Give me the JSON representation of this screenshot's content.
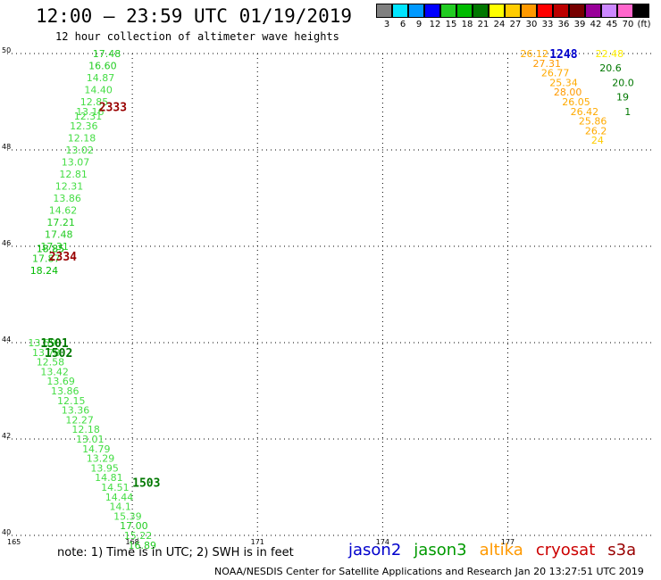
{
  "header": {
    "title": "12:00 – 23:59 UTC 01/19/2019",
    "subtitle": "12 hour collection of altimeter wave heights"
  },
  "color_scale": {
    "labels": [
      "3",
      "6",
      "9",
      "12",
      "15",
      "18",
      "21",
      "24",
      "27",
      "30",
      "33",
      "36",
      "39",
      "42",
      "45",
      "70",
      "(ft)"
    ],
    "colors": [
      "#808080",
      "#00e5ff",
      "#0099ff",
      "#0000ff",
      "#22cc22",
      "#00bb00",
      "#007700",
      "#ffff00",
      "#ffcc00",
      "#ff9900",
      "#ff0000",
      "#bb0000",
      "#770000",
      "#990099",
      "#cc88ff",
      "#ff66cc",
      "#000000"
    ]
  },
  "footer": {
    "note": "note: 1) Time is in UTC; 2) SWH is in feet",
    "credit": "NOAA/NESDIS Center for Satellite Applications and Research   Jan 20 13:27:51 UTC 2019",
    "legend": [
      {
        "label": "jason2",
        "color": "#0000cc"
      },
      {
        "label": "jason3",
        "color": "#009900"
      },
      {
        "label": "altika",
        "color": "#ff9900"
      },
      {
        "label": "cryosat",
        "color": "#cc0000"
      },
      {
        "label": "s3a",
        "color": "#990000"
      }
    ]
  },
  "chart_data": {
    "type": "scatter",
    "xlim": [
      165,
      180.5
    ],
    "ylim": [
      40,
      50
    ],
    "x_ticks": [
      165,
      168,
      171,
      174,
      177
    ],
    "y_ticks": [
      40,
      42,
      44,
      46,
      48,
      50
    ],
    "grid": true,
    "track_labels": [
      {
        "text": "2333",
        "x": 167.2,
        "y": 48.9,
        "color": "#990000"
      },
      {
        "text": "2334",
        "x": 166.0,
        "y": 45.8,
        "color": "#990000"
      },
      {
        "text": "1501",
        "x": 165.8,
        "y": 44.0,
        "color": "#007700"
      },
      {
        "text": "1502",
        "x": 165.9,
        "y": 43.8,
        "color": "#007700"
      },
      {
        "text": "1503",
        "x": 168.0,
        "y": 41.1,
        "color": "#007700"
      },
      {
        "text": "1248",
        "x": 178.0,
        "y": 50.0,
        "color": "#0000cc"
      }
    ],
    "points": [
      {
        "x": 167.05,
        "y": 50.0,
        "v": "17.48",
        "color": "#22cc22"
      },
      {
        "x": 166.95,
        "y": 49.75,
        "v": "16.60",
        "color": "#22cc22"
      },
      {
        "x": 166.9,
        "y": 49.5,
        "v": "14.87",
        "color": "#44dd44"
      },
      {
        "x": 166.85,
        "y": 49.25,
        "v": "14.40",
        "color": "#44dd44"
      },
      {
        "x": 166.75,
        "y": 49.0,
        "v": "12.85",
        "color": "#44dd44"
      },
      {
        "x": 166.65,
        "y": 48.8,
        "v": "13.16",
        "color": "#44dd44"
      },
      {
        "x": 166.6,
        "y": 48.7,
        "v": "12.31",
        "color": "#44dd44"
      },
      {
        "x": 166.5,
        "y": 48.5,
        "v": "12.36",
        "color": "#44dd44"
      },
      {
        "x": 166.45,
        "y": 48.25,
        "v": "12.18",
        "color": "#44dd44"
      },
      {
        "x": 166.4,
        "y": 48.0,
        "v": "13.02",
        "color": "#44dd44"
      },
      {
        "x": 166.3,
        "y": 47.75,
        "v": "13.07",
        "color": "#44dd44"
      },
      {
        "x": 166.25,
        "y": 47.5,
        "v": "12.81",
        "color": "#44dd44"
      },
      {
        "x": 166.15,
        "y": 47.25,
        "v": "12.31",
        "color": "#44dd44"
      },
      {
        "x": 166.1,
        "y": 47.0,
        "v": "13.86",
        "color": "#44dd44"
      },
      {
        "x": 166.0,
        "y": 46.75,
        "v": "14.62",
        "color": "#44dd44"
      },
      {
        "x": 165.95,
        "y": 46.5,
        "v": "17.21",
        "color": "#22cc22"
      },
      {
        "x": 165.9,
        "y": 46.25,
        "v": "17.48",
        "color": "#22cc22"
      },
      {
        "x": 165.8,
        "y": 46.0,
        "v": "17.31",
        "color": "#22cc22"
      },
      {
        "x": 165.7,
        "y": 45.95,
        "v": "18.85",
        "color": "#00bb00"
      },
      {
        "x": 165.6,
        "y": 45.75,
        "v": "17.87",
        "color": "#22cc22"
      },
      {
        "x": 165.55,
        "y": 45.5,
        "v": "18.24",
        "color": "#00bb00"
      },
      {
        "x": 165.5,
        "y": 44.0,
        "v": "13.59",
        "color": "#44dd44"
      },
      {
        "x": 165.6,
        "y": 43.8,
        "v": "13.78",
        "color": "#44dd44"
      },
      {
        "x": 165.7,
        "y": 43.6,
        "v": "12.58",
        "color": "#44dd44"
      },
      {
        "x": 165.8,
        "y": 43.4,
        "v": "13.42",
        "color": "#44dd44"
      },
      {
        "x": 165.95,
        "y": 43.2,
        "v": "13.69",
        "color": "#44dd44"
      },
      {
        "x": 166.05,
        "y": 43.0,
        "v": "13.86",
        "color": "#44dd44"
      },
      {
        "x": 166.2,
        "y": 42.8,
        "v": "12.15",
        "color": "#44dd44"
      },
      {
        "x": 166.3,
        "y": 42.6,
        "v": "13.36",
        "color": "#44dd44"
      },
      {
        "x": 166.4,
        "y": 42.4,
        "v": "12.27",
        "color": "#44dd44"
      },
      {
        "x": 166.55,
        "y": 42.2,
        "v": "12.18",
        "color": "#44dd44"
      },
      {
        "x": 166.65,
        "y": 42.0,
        "v": "13.01",
        "color": "#44dd44"
      },
      {
        "x": 166.8,
        "y": 41.8,
        "v": "14.79",
        "color": "#44dd44"
      },
      {
        "x": 166.9,
        "y": 41.6,
        "v": "13.29",
        "color": "#44dd44"
      },
      {
        "x": 167.0,
        "y": 41.4,
        "v": "13.95",
        "color": "#44dd44"
      },
      {
        "x": 167.1,
        "y": 41.2,
        "v": "14.81",
        "color": "#44dd44"
      },
      {
        "x": 167.25,
        "y": 41.0,
        "v": "14.51",
        "color": "#44dd44"
      },
      {
        "x": 167.35,
        "y": 40.8,
        "v": "14.44",
        "color": "#44dd44"
      },
      {
        "x": 167.45,
        "y": 40.6,
        "v": "14.1",
        "color": "#44dd44"
      },
      {
        "x": 167.55,
        "y": 40.4,
        "v": "15.39",
        "color": "#44dd44"
      },
      {
        "x": 167.7,
        "y": 40.2,
        "v": "17.00",
        "color": "#22cc22"
      },
      {
        "x": 167.8,
        "y": 40.0,
        "v": "15.22",
        "color": "#44dd44"
      },
      {
        "x": 167.9,
        "y": 39.8,
        "v": "16.89",
        "color": "#22cc22"
      },
      {
        "x": 177.3,
        "y": 50.0,
        "v": "26.12",
        "color": "#ffaa00"
      },
      {
        "x": 177.6,
        "y": 49.8,
        "v": "27.31",
        "color": "#ff9900"
      },
      {
        "x": 177.8,
        "y": 49.6,
        "v": "26.77",
        "color": "#ffaa00"
      },
      {
        "x": 178.0,
        "y": 49.4,
        "v": "25.34",
        "color": "#ffaa00"
      },
      {
        "x": 178.1,
        "y": 49.2,
        "v": "28.00",
        "color": "#ff9900"
      },
      {
        "x": 178.3,
        "y": 49.0,
        "v": "26.05",
        "color": "#ffaa00"
      },
      {
        "x": 178.5,
        "y": 48.8,
        "v": "26.42",
        "color": "#ffaa00"
      },
      {
        "x": 178.7,
        "y": 48.6,
        "v": "25.86",
        "color": "#ffaa00"
      },
      {
        "x": 178.85,
        "y": 48.4,
        "v": "26.2",
        "color": "#ffaa00"
      },
      {
        "x": 179.0,
        "y": 48.2,
        "v": "24",
        "color": "#ffcc00"
      },
      {
        "x": 179.1,
        "y": 50.0,
        "v": "22.48",
        "color": "#ffee00"
      },
      {
        "x": 179.2,
        "y": 49.7,
        "v": "20.6",
        "color": "#007700"
      },
      {
        "x": 179.5,
        "y": 49.4,
        "v": "20.0",
        "color": "#007700"
      },
      {
        "x": 179.6,
        "y": 49.1,
        "v": "19",
        "color": "#007700"
      },
      {
        "x": 179.8,
        "y": 48.8,
        "v": "1",
        "color": "#007700"
      }
    ]
  }
}
